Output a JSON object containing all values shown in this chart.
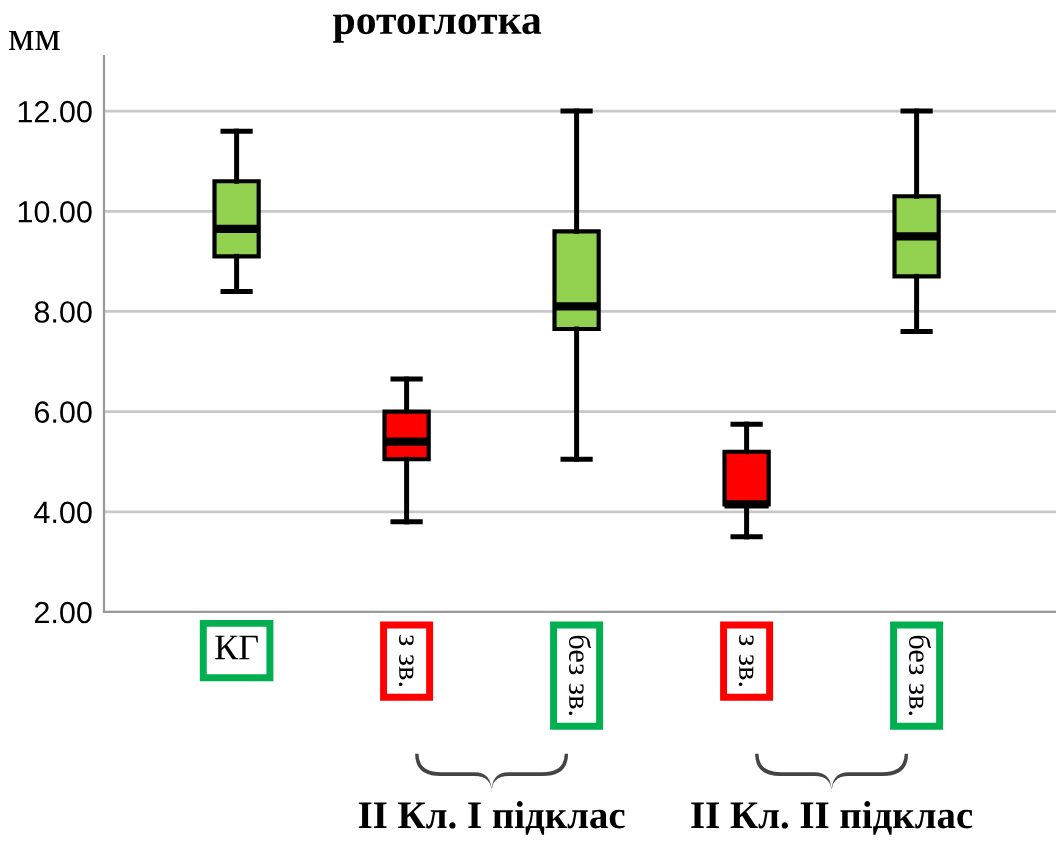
{
  "chart_data": {
    "type": "box",
    "title": "ротоглотка",
    "ylabel": "мм",
    "categories": [
      "КГ",
      "з зв.",
      "без зв.",
      "з зв.",
      "без зв."
    ],
    "colors": [
      "#92d050",
      "#ff0000",
      "#92d050",
      "#ff0000",
      "#92d050"
    ],
    "boxes": [
      {
        "low": 8.4,
        "q1": 9.1,
        "median": 9.65,
        "q3": 10.6,
        "high": 11.6
      },
      {
        "low": 3.8,
        "q1": 5.05,
        "median": 5.4,
        "q3": 6.0,
        "high": 6.65
      },
      {
        "low": 5.05,
        "q1": 7.65,
        "median": 8.1,
        "q3": 9.6,
        "high": 12.0
      },
      {
        "low": 3.5,
        "q1": 4.15,
        "median": 4.15,
        "q3": 5.2,
        "high": 5.75
      },
      {
        "low": 7.6,
        "q1": 8.7,
        "median": 9.5,
        "q3": 10.3,
        "high": 12.0
      }
    ],
    "ylim": [
      2,
      13.1
    ],
    "yticks": [
      {
        "value": 2,
        "label": "2.00"
      },
      {
        "value": 4,
        "label": "4.00"
      },
      {
        "value": 6,
        "label": "6.00"
      },
      {
        "value": 8,
        "label": "8.00"
      },
      {
        "value": 10,
        "label": "10.00"
      },
      {
        "value": 12,
        "label": "12.00"
      }
    ],
    "grid": "y",
    "annotations": [
      "ІІ Кл. І підклас",
      "ІІ Кл. ІІ підклас"
    ]
  }
}
